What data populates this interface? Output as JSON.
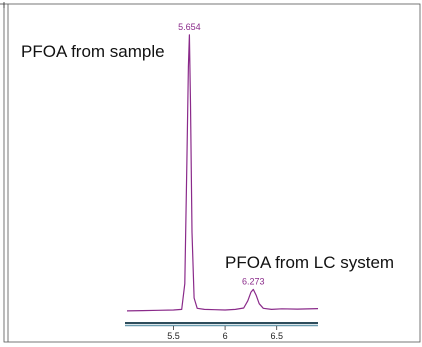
{
  "chart_data": {
    "type": "line",
    "xlim": [
      5.05,
      6.9
    ],
    "ylim": [
      0,
      100
    ],
    "grid": false,
    "ticks": [
      5.5,
      6,
      6.5
    ],
    "tick_labels": [
      "5.5",
      "6",
      "6.5"
    ],
    "series": [
      {
        "color": "#8a2a8a",
        "x": [
          5.05,
          5.2,
          5.35,
          5.5,
          5.58,
          5.61,
          5.63,
          5.645,
          5.654,
          5.665,
          5.68,
          5.7,
          5.73,
          5.8,
          5.9,
          6.0,
          6.1,
          6.18,
          6.22,
          6.25,
          6.273,
          6.3,
          6.33,
          6.37,
          6.45,
          6.55,
          6.7,
          6.9
        ],
        "y": [
          2.5,
          2.6,
          2.7,
          2.8,
          3.0,
          12,
          55,
          88,
          99,
          75,
          30,
          7,
          3.4,
          3.0,
          2.9,
          2.8,
          3.0,
          3.5,
          6.0,
          9.0,
          10.0,
          8.0,
          5.0,
          3.4,
          3.0,
          3.2,
          3.1,
          3.3
        ]
      }
    ],
    "peaks": [
      {
        "x": 5.654,
        "y": 99,
        "label": "5.654"
      },
      {
        "x": 6.273,
        "y": 10,
        "label": "6.273"
      }
    ],
    "annotations": [
      {
        "text": "PFOA from sample"
      },
      {
        "text": "PFOA from LC system"
      }
    ]
  }
}
